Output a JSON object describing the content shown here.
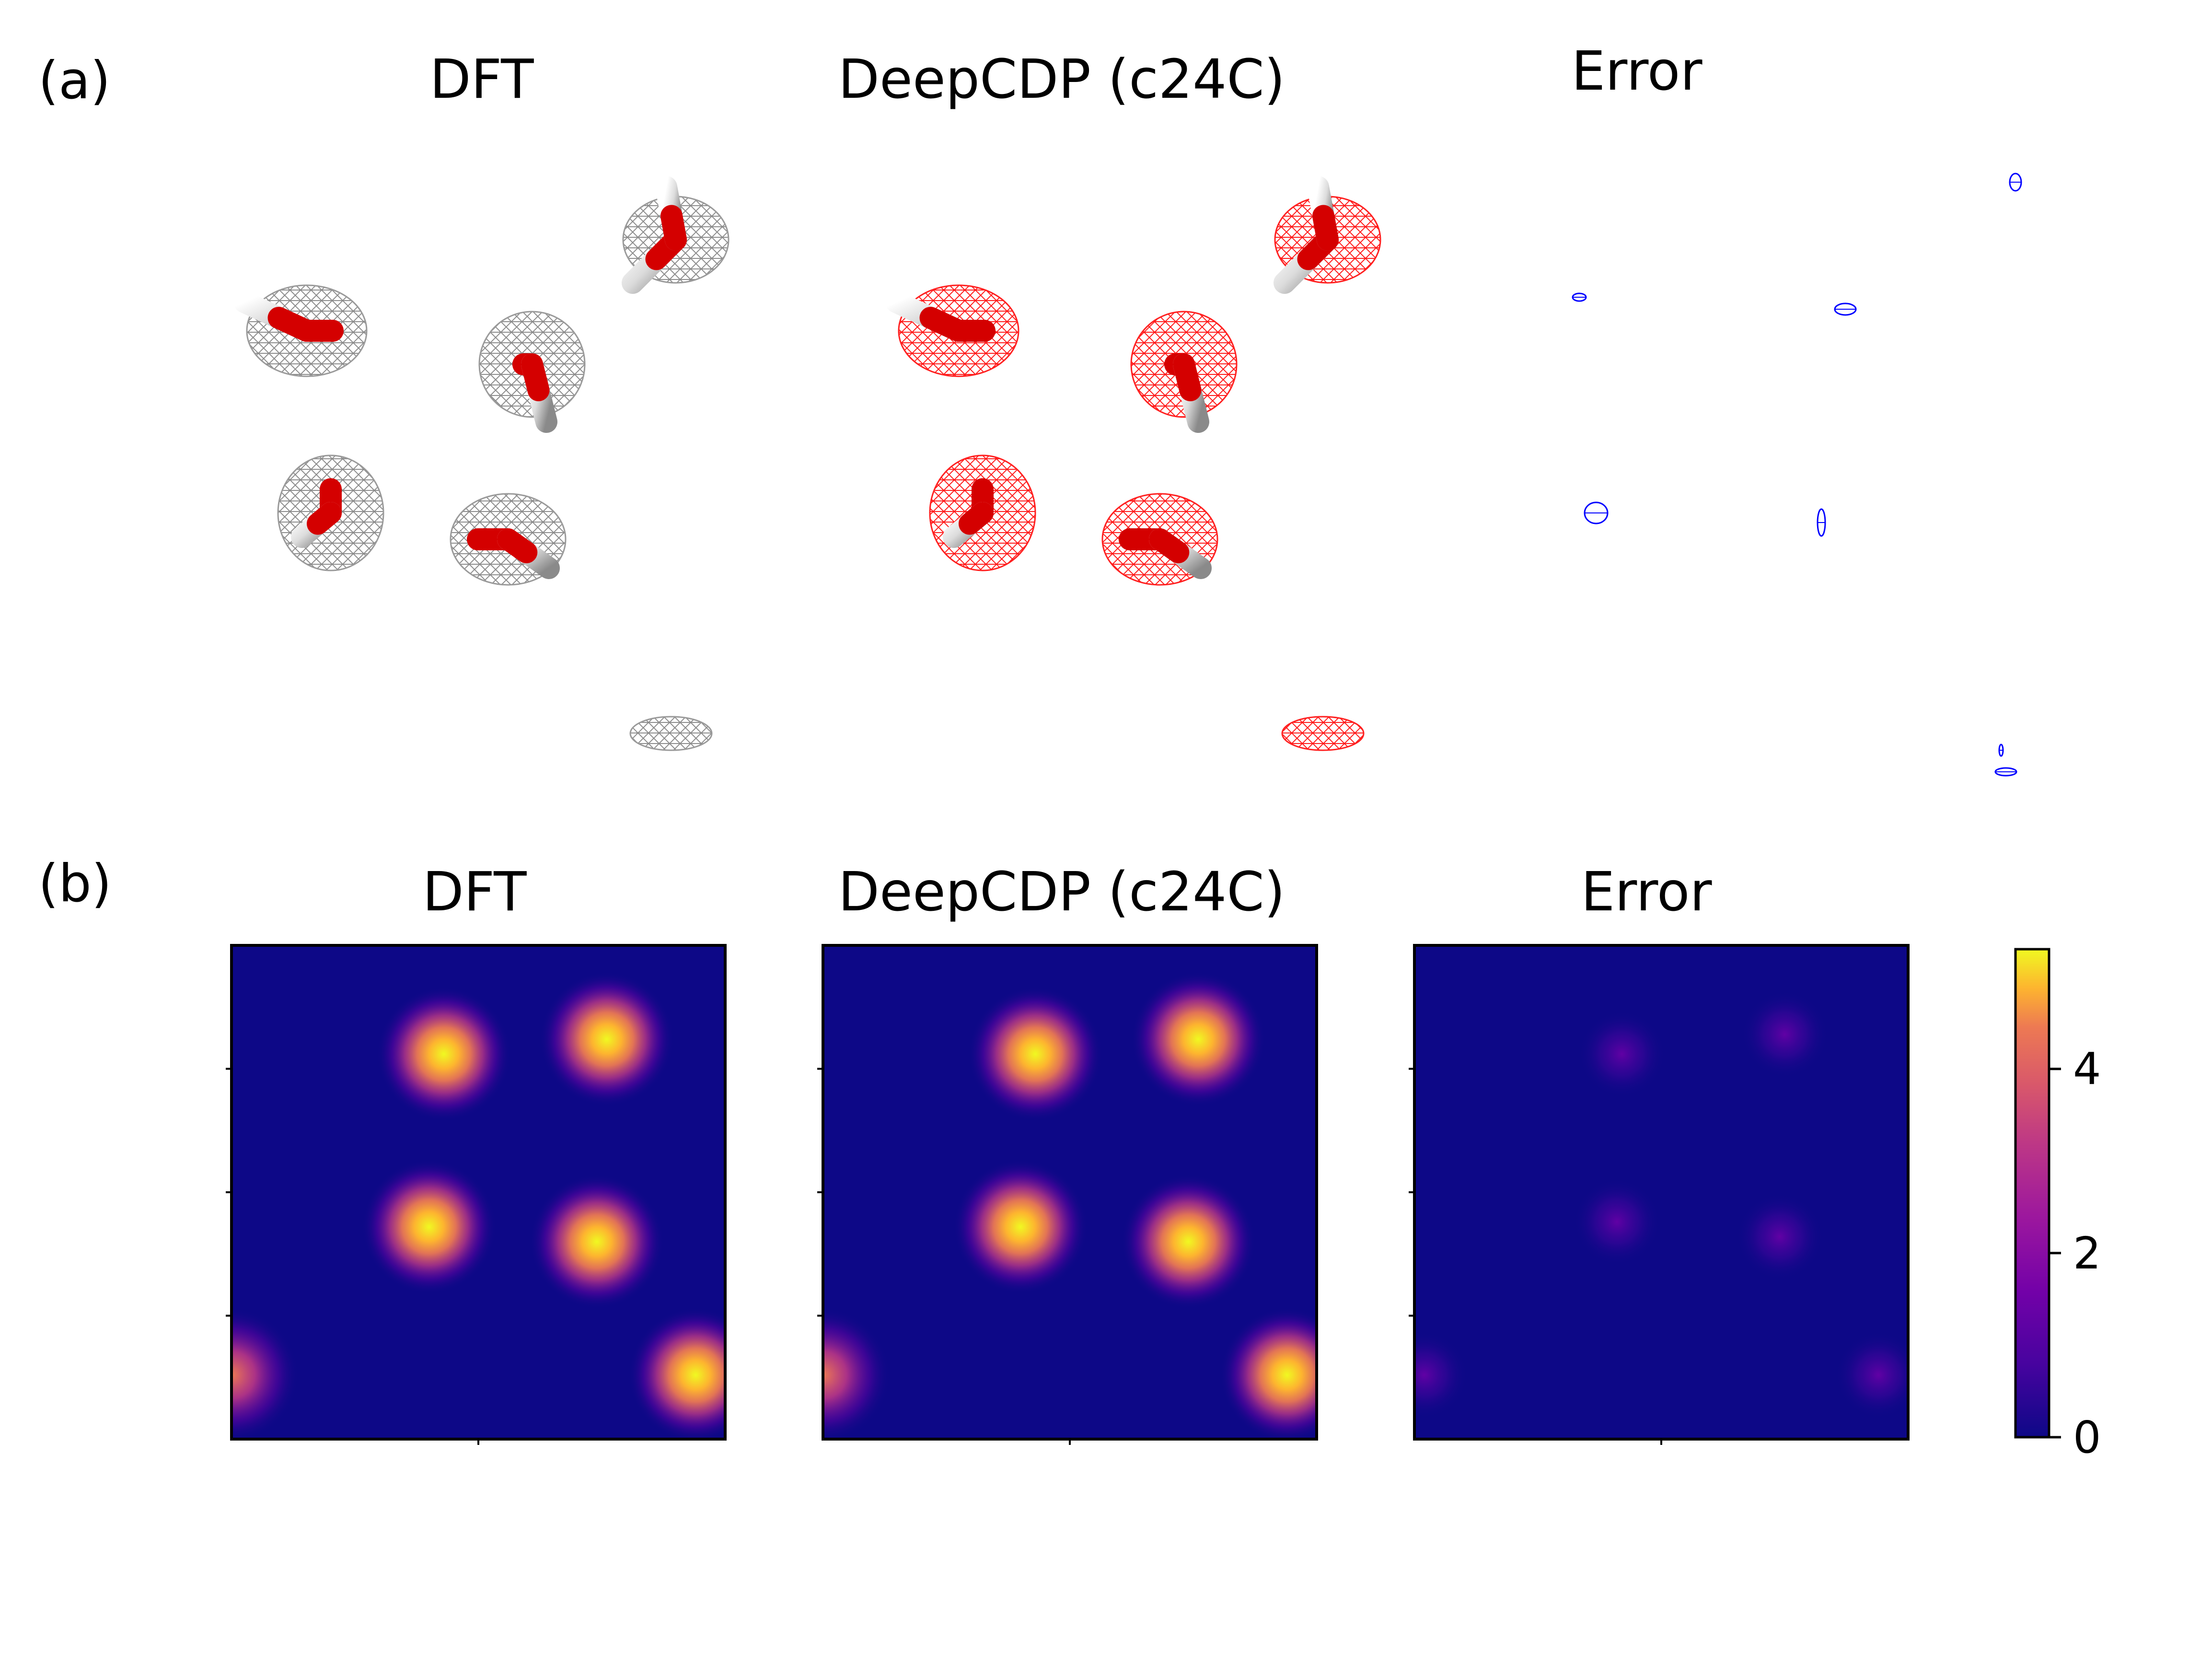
{
  "figure": {
    "panel_a": {
      "label": "(a)",
      "titles": [
        "DFT",
        "DeepCDP (c24C)",
        "Error"
      ],
      "colors": {
        "dft_mesh": "#8c8c8c",
        "model_mesh": "#ff0000",
        "error_mesh": "#0000ff",
        "oxygen": "#e00000",
        "hydrogen": "#d9d9d9"
      }
    },
    "panel_b": {
      "label": "(b)",
      "titles": [
        "DFT",
        "DeepCDP (c24C)",
        "Error"
      ],
      "colormap": "plasma",
      "colorbar": {
        "ticks": [
          "0",
          "2",
          "4"
        ],
        "min": 0,
        "max": 5.3
      }
    }
  },
  "chart_data": {
    "type": "heatmap",
    "colormap": "plasma",
    "vmin": 0,
    "vmax": 5.3,
    "panels": [
      {
        "title": "DFT",
        "spots": [
          {
            "x": 0.43,
            "y": 0.22,
            "v": 5.2
          },
          {
            "x": 0.76,
            "y": 0.19,
            "v": 5.2
          },
          {
            "x": 0.4,
            "y": 0.57,
            "v": 5.2
          },
          {
            "x": 0.74,
            "y": 0.6,
            "v": 5.2
          },
          {
            "x": 0.94,
            "y": 0.87,
            "v": 5.2
          },
          {
            "x": 0.0,
            "y": 0.87,
            "v": 3.0
          }
        ]
      },
      {
        "title": "DeepCDP (c24C)",
        "spots": [
          {
            "x": 0.43,
            "y": 0.22,
            "v": 5.2
          },
          {
            "x": 0.76,
            "y": 0.19,
            "v": 5.2
          },
          {
            "x": 0.4,
            "y": 0.57,
            "v": 5.2
          },
          {
            "x": 0.74,
            "y": 0.6,
            "v": 5.2
          },
          {
            "x": 0.94,
            "y": 0.87,
            "v": 5.2
          },
          {
            "x": 0.0,
            "y": 0.87,
            "v": 3.0
          }
        ]
      },
      {
        "title": "Error",
        "spots": [
          {
            "x": 0.42,
            "y": 0.22,
            "v": 1.0
          },
          {
            "x": 0.75,
            "y": 0.18,
            "v": 0.9
          },
          {
            "x": 0.41,
            "y": 0.56,
            "v": 0.9
          },
          {
            "x": 0.74,
            "y": 0.59,
            "v": 0.8
          },
          {
            "x": 0.94,
            "y": 0.87,
            "v": 0.8
          },
          {
            "x": 0.02,
            "y": 0.87,
            "v": 0.7
          }
        ]
      }
    ],
    "colorbar_ticks": [
      0,
      2,
      4
    ]
  }
}
